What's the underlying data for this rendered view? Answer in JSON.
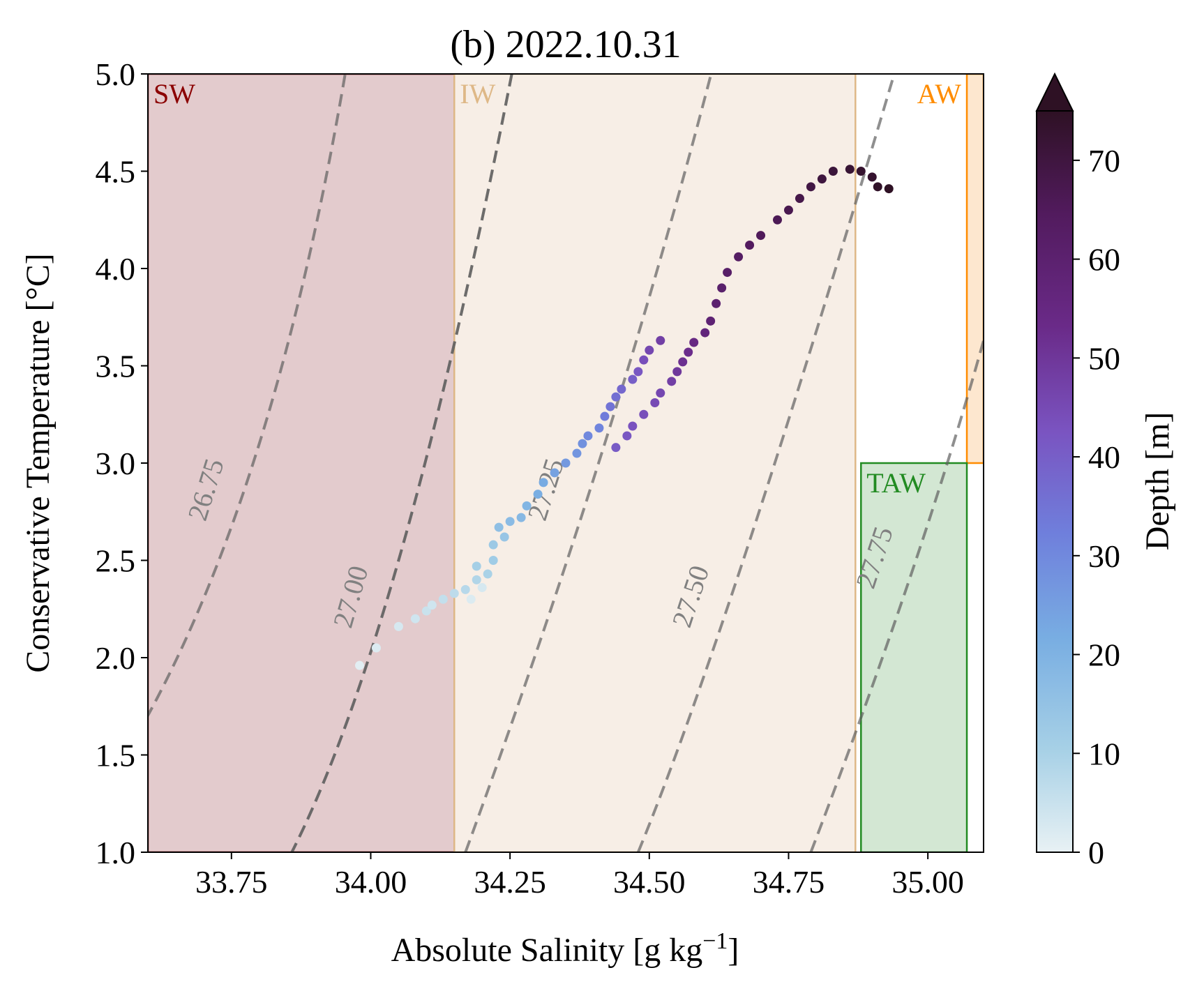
{
  "chart_data": {
    "type": "scatter",
    "title": "(b) 2022.10.31",
    "xlabel": "Absolute Salinity [g kg",
    "xlabel_sup": "−1",
    "xlabel_end": "]",
    "ylabel": "Conservative Temperature [°C]",
    "xlim": [
      33.6,
      35.1
    ],
    "ylim": [
      1.0,
      5.0
    ],
    "x_ticks": [
      33.75,
      34.0,
      34.25,
      34.5,
      34.75,
      35.0
    ],
    "x_tick_labels": [
      "33.75",
      "34.00",
      "34.25",
      "34.50",
      "34.75",
      "35.00"
    ],
    "y_ticks": [
      1.0,
      1.5,
      2.0,
      2.5,
      3.0,
      3.5,
      4.0,
      4.5,
      5.0
    ],
    "y_tick_labels": [
      "1.0",
      "1.5",
      "2.0",
      "2.5",
      "3.0",
      "3.5",
      "4.0",
      "4.5",
      "5.0"
    ],
    "grid": false,
    "colorbar": {
      "label": "Depth [m]",
      "range": [
        0,
        75
      ],
      "extend": "max",
      "ticks": [
        0,
        10,
        20,
        30,
        40,
        50,
        60,
        70
      ],
      "tick_labels": [
        "0",
        "10",
        "20",
        "30",
        "40",
        "50",
        "60",
        "70"
      ],
      "colormap": [
        "#e8f1f4",
        "#a6d0e6",
        "#78ade2",
        "#6f7fdc",
        "#7a53c0",
        "#6a2a88",
        "#521b5e",
        "#2e1124"
      ]
    },
    "water_masses": [
      {
        "label": "SW",
        "color": "#8b0000",
        "fill": "#e3cbcd",
        "s_range": [
          33.6,
          34.15
        ],
        "t_range": [
          1.0,
          5.0
        ]
      },
      {
        "label": "IW",
        "color": "#deb887",
        "fill": "#f7eee6",
        "s_range": [
          34.15,
          34.87
        ],
        "t_range": [
          1.0,
          5.0
        ]
      },
      {
        "label": "AW",
        "color": "#ff8c00",
        "fill": "#fde7cf",
        "s_range": [
          35.07,
          35.1
        ],
        "t_range": [
          3.0,
          5.0
        ]
      },
      {
        "label": "TAW",
        "color": "#228b22",
        "fill": "#d3e7d3",
        "s_range": [
          34.88,
          35.07
        ],
        "t_range": [
          1.0,
          3.0
        ]
      }
    ],
    "density_contours": [
      {
        "value": "26.75",
        "points": [
          [
            33.58,
            1.6
          ],
          [
            33.8,
            3.1
          ],
          [
            33.96,
            5.1
          ]
        ],
        "label_at": [
          33.72,
          2.85
        ]
      },
      {
        "value": "",
        "points": [
          [
            33.84,
            0.9
          ],
          [
            34.05,
            2.5
          ],
          [
            34.26,
            5.1
          ]
        ],
        "label_at": null
      },
      {
        "value": "27.00",
        "points": [
          [
            33.84,
            0.9
          ],
          [
            34.05,
            2.5
          ],
          [
            34.26,
            5.1
          ]
        ],
        "label_at": [
          33.98,
          2.3
        ]
      },
      {
        "value": "27.25",
        "points": [
          [
            34.17,
            1.0
          ],
          [
            34.42,
            3.1
          ],
          [
            34.62,
            5.1
          ]
        ],
        "label_at": [
          34.33,
          2.85
        ]
      },
      {
        "value": "27.50",
        "points": [
          [
            34.48,
            1.0
          ],
          [
            34.68,
            2.6
          ],
          [
            34.95,
            5.1
          ]
        ],
        "label_at": [
          34.59,
          2.3
        ]
      },
      {
        "value": "27.75",
        "points": [
          [
            34.79,
            1.0
          ],
          [
            34.99,
            2.6
          ],
          [
            35.13,
            3.95
          ]
        ],
        "label_at": [
          34.92,
          2.5
        ]
      }
    ],
    "series": [
      {
        "segment": "surface",
        "points": [
          [
            33.98,
            1.96,
            1
          ],
          [
            34.01,
            2.05,
            2
          ],
          [
            34.05,
            2.16,
            3
          ],
          [
            34.08,
            2.2,
            4
          ],
          [
            34.1,
            2.24,
            5
          ],
          [
            34.11,
            2.27,
            4
          ],
          [
            34.13,
            2.3,
            6
          ],
          [
            34.15,
            2.33,
            7
          ],
          [
            34.17,
            2.35,
            8
          ],
          [
            34.19,
            2.4,
            9
          ],
          [
            34.18,
            2.3,
            2
          ],
          [
            34.2,
            2.36,
            3
          ],
          [
            34.21,
            2.43,
            10
          ],
          [
            34.19,
            2.47,
            11
          ],
          [
            34.22,
            2.5,
            12
          ],
          [
            34.22,
            2.58,
            13
          ],
          [
            34.24,
            2.62,
            14
          ],
          [
            34.23,
            2.67,
            16
          ],
          [
            34.25,
            2.7,
            17
          ],
          [
            34.27,
            2.72,
            18
          ],
          [
            34.28,
            2.78,
            19
          ],
          [
            34.3,
            2.84,
            21
          ],
          [
            34.31,
            2.9,
            22
          ],
          [
            34.33,
            2.95,
            24
          ],
          [
            34.35,
            3.0,
            26
          ],
          [
            34.37,
            3.05,
            27
          ],
          [
            34.38,
            3.1,
            28
          ],
          [
            34.39,
            3.14,
            30
          ],
          [
            34.41,
            3.18,
            31
          ],
          [
            34.42,
            3.24,
            33
          ],
          [
            34.43,
            3.29,
            35
          ],
          [
            34.44,
            3.34,
            36
          ],
          [
            34.45,
            3.38,
            38
          ],
          [
            34.47,
            3.43,
            40
          ],
          [
            34.48,
            3.47,
            42
          ],
          [
            34.49,
            3.53,
            44
          ],
          [
            34.5,
            3.58,
            46
          ],
          [
            34.52,
            3.63,
            48
          ]
        ]
      },
      {
        "segment": "deep",
        "points": [
          [
            34.44,
            3.08,
            41
          ],
          [
            34.46,
            3.14,
            42
          ],
          [
            34.47,
            3.19,
            43
          ],
          [
            34.49,
            3.25,
            44
          ],
          [
            34.51,
            3.31,
            45
          ],
          [
            34.52,
            3.36,
            46
          ],
          [
            34.54,
            3.42,
            48
          ],
          [
            34.55,
            3.47,
            50
          ],
          [
            34.56,
            3.52,
            52
          ],
          [
            34.57,
            3.57,
            53
          ],
          [
            34.58,
            3.62,
            55
          ],
          [
            34.6,
            3.67,
            57
          ],
          [
            34.61,
            3.73,
            59
          ],
          [
            34.62,
            3.82,
            60
          ],
          [
            34.63,
            3.9,
            61
          ],
          [
            34.64,
            3.98,
            62
          ],
          [
            34.66,
            4.06,
            63
          ],
          [
            34.68,
            4.12,
            64
          ],
          [
            34.7,
            4.17,
            65
          ],
          [
            34.73,
            4.25,
            66
          ],
          [
            34.75,
            4.3,
            67
          ],
          [
            34.77,
            4.36,
            68
          ],
          [
            34.79,
            4.42,
            69
          ],
          [
            34.81,
            4.46,
            70
          ],
          [
            34.83,
            4.5,
            71
          ],
          [
            34.86,
            4.51,
            72
          ],
          [
            34.88,
            4.5,
            73
          ],
          [
            34.9,
            4.47,
            73
          ],
          [
            34.91,
            4.42,
            74
          ],
          [
            34.93,
            4.41,
            75
          ]
        ]
      }
    ]
  }
}
